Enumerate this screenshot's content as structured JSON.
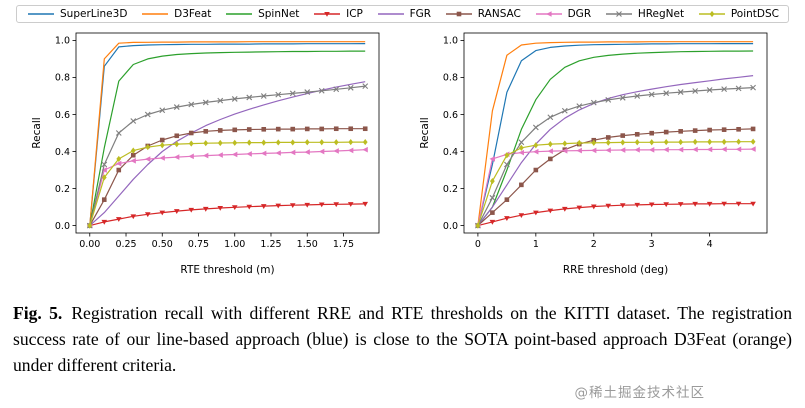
{
  "caption": {
    "fig_label": "Fig. 5.",
    "text": "Registration recall with different RRE and RTE thresholds on the KITTI dataset. The registration success rate of our line-based approach (blue) is close to the SOTA point-based approach D3Feat (orange) under different criteria."
  },
  "watermark": {
    "text": "@稀土掘金技术社区"
  },
  "chart_data": [
    {
      "type": "line",
      "title": "",
      "xlabel": "RTE threshold (m)",
      "ylabel": "Recall",
      "xlim": [
        -0.095,
        1.995
      ],
      "ylim": [
        -0.04,
        1.04
      ],
      "xticks": [
        0.0,
        0.25,
        0.5,
        0.75,
        1.0,
        1.25,
        1.5,
        1.75
      ],
      "xtick_labels": [
        "0.00",
        "0.25",
        "0.50",
        "0.75",
        "1.00",
        "1.25",
        "1.50",
        "1.75"
      ],
      "yticks": [
        0.0,
        0.2,
        0.4,
        0.6,
        0.8,
        1.0
      ],
      "ytick_labels": [
        "0.0",
        "0.2",
        "0.4",
        "0.6",
        "0.8",
        "1.0"
      ],
      "grid": false,
      "legend_position": "top",
      "x": [
        0.0,
        0.1,
        0.2,
        0.3,
        0.4,
        0.5,
        0.6,
        0.7,
        0.8,
        0.9,
        1.0,
        1.1,
        1.2,
        1.3,
        1.4,
        1.5,
        1.6,
        1.7,
        1.8,
        1.9
      ],
      "series": [
        {
          "name": "SuperLine3D",
          "color": "#1f77b4",
          "marker": "none",
          "values": [
            0,
            0.86,
            0.965,
            0.972,
            0.975,
            0.977,
            0.978,
            0.979,
            0.979,
            0.98,
            0.98,
            0.98,
            0.981,
            0.981,
            0.981,
            0.982,
            0.982,
            0.982,
            0.982,
            0.983
          ]
        },
        {
          "name": "D3Feat",
          "color": "#ff7f0e",
          "marker": "none",
          "values": [
            0,
            0.9,
            0.985,
            0.989,
            0.99,
            0.991,
            0.991,
            0.992,
            0.992,
            0.992,
            0.992,
            0.993,
            0.993,
            0.993,
            0.993,
            0.993,
            0.993,
            0.993,
            0.993,
            0.993
          ]
        },
        {
          "name": "SpinNet",
          "color": "#2ca02c",
          "marker": "none",
          "values": [
            0,
            0.42,
            0.78,
            0.87,
            0.9,
            0.915,
            0.924,
            0.929,
            0.932,
            0.934,
            0.936,
            0.937,
            0.938,
            0.939,
            0.94,
            0.94,
            0.941,
            0.941,
            0.942,
            0.942
          ]
        },
        {
          "name": "ICP",
          "color": "#d62728",
          "marker": "v",
          "values": [
            0,
            0.02,
            0.035,
            0.05,
            0.061,
            0.07,
            0.078,
            0.085,
            0.09,
            0.095,
            0.099,
            0.102,
            0.105,
            0.108,
            0.11,
            0.112,
            0.114,
            0.115,
            0.116,
            0.117
          ]
        },
        {
          "name": "FGR",
          "color": "#9467bd",
          "marker": "none",
          "values": [
            0,
            0.07,
            0.16,
            0.25,
            0.33,
            0.4,
            0.455,
            0.5,
            0.54,
            0.573,
            0.602,
            0.628,
            0.652,
            0.674,
            0.694,
            0.713,
            0.731,
            0.748,
            0.763,
            0.777
          ]
        },
        {
          "name": "RANSAC",
          "color": "#8c564b",
          "marker": "s",
          "values": [
            0,
            0.14,
            0.3,
            0.38,
            0.43,
            0.462,
            0.485,
            0.5,
            0.509,
            0.514,
            0.517,
            0.519,
            0.52,
            0.521,
            0.521,
            0.522,
            0.522,
            0.523,
            0.523,
            0.523
          ]
        },
        {
          "name": "DGR",
          "color": "#e377c2",
          "marker": "<",
          "values": [
            0,
            0.3,
            0.335,
            0.35,
            0.359,
            0.365,
            0.37,
            0.374,
            0.378,
            0.381,
            0.384,
            0.387,
            0.39,
            0.392,
            0.395,
            0.397,
            0.4,
            0.403,
            0.406,
            0.41
          ]
        },
        {
          "name": "HRegNet",
          "color": "#7f7f7f",
          "marker": "x",
          "values": [
            0,
            0.33,
            0.5,
            0.565,
            0.6,
            0.623,
            0.64,
            0.654,
            0.665,
            0.675,
            0.684,
            0.692,
            0.7,
            0.707,
            0.714,
            0.721,
            0.728,
            0.736,
            0.744,
            0.753
          ]
        },
        {
          "name": "PointDSC",
          "color": "#bcbd22",
          "marker": "D",
          "values": [
            0,
            0.26,
            0.36,
            0.405,
            0.424,
            0.434,
            0.44,
            0.443,
            0.445,
            0.446,
            0.447,
            0.448,
            0.448,
            0.449,
            0.449,
            0.45,
            0.45,
            0.45,
            0.451,
            0.451
          ]
        }
      ]
    },
    {
      "type": "line",
      "title": "",
      "xlabel": "RRE threshold (deg)",
      "ylabel": "Recall",
      "xlim": [
        -0.24,
        4.99
      ],
      "ylim": [
        -0.04,
        1.04
      ],
      "xticks": [
        0,
        1,
        2,
        3,
        4
      ],
      "xtick_labels": [
        "0",
        "1",
        "2",
        "3",
        "4"
      ],
      "yticks": [
        0.0,
        0.2,
        0.4,
        0.6,
        0.8,
        1.0
      ],
      "ytick_labels": [
        "0.0",
        "0.2",
        "0.4",
        "0.6",
        "0.8",
        "1.0"
      ],
      "grid": false,
      "legend_position": "top",
      "x": [
        0.0,
        0.25,
        0.5,
        0.75,
        1.0,
        1.25,
        1.5,
        1.75,
        2.0,
        2.25,
        2.5,
        2.75,
        3.0,
        3.25,
        3.5,
        3.75,
        4.0,
        4.25,
        4.5,
        4.75
      ],
      "series": [
        {
          "name": "SuperLine3D",
          "color": "#1f77b4",
          "marker": "none",
          "values": [
            0,
            0.33,
            0.72,
            0.89,
            0.945,
            0.962,
            0.97,
            0.974,
            0.977,
            0.978,
            0.979,
            0.98,
            0.981,
            0.981,
            0.982,
            0.982,
            0.982,
            0.983,
            0.983,
            0.983
          ]
        },
        {
          "name": "D3Feat",
          "color": "#ff7f0e",
          "marker": "none",
          "values": [
            0,
            0.62,
            0.92,
            0.975,
            0.985,
            0.988,
            0.99,
            0.991,
            0.991,
            0.992,
            0.992,
            0.992,
            0.993,
            0.993,
            0.993,
            0.993,
            0.993,
            0.993,
            0.993,
            0.993
          ]
        },
        {
          "name": "SpinNet",
          "color": "#2ca02c",
          "marker": "none",
          "values": [
            0,
            0.1,
            0.3,
            0.52,
            0.68,
            0.79,
            0.855,
            0.89,
            0.909,
            0.919,
            0.926,
            0.931,
            0.934,
            0.937,
            0.939,
            0.94,
            0.941,
            0.942,
            0.942,
            0.943
          ]
        },
        {
          "name": "ICP",
          "color": "#d62728",
          "marker": "v",
          "values": [
            0,
            0.02,
            0.04,
            0.056,
            0.07,
            0.081,
            0.09,
            0.097,
            0.103,
            0.107,
            0.11,
            0.112,
            0.114,
            0.115,
            0.116,
            0.117,
            0.117,
            0.118,
            0.118,
            0.118
          ]
        },
        {
          "name": "FGR",
          "color": "#9467bd",
          "marker": "none",
          "values": [
            0,
            0.1,
            0.22,
            0.34,
            0.44,
            0.52,
            0.58,
            0.625,
            0.66,
            0.687,
            0.707,
            0.723,
            0.737,
            0.75,
            0.762,
            0.772,
            0.782,
            0.792,
            0.801,
            0.81
          ]
        },
        {
          "name": "RANSAC",
          "color": "#8c564b",
          "marker": "s",
          "values": [
            0,
            0.07,
            0.14,
            0.22,
            0.3,
            0.36,
            0.41,
            0.44,
            0.461,
            0.476,
            0.486,
            0.493,
            0.499,
            0.505,
            0.509,
            0.513,
            0.516,
            0.518,
            0.52,
            0.522
          ]
        },
        {
          "name": "DGR",
          "color": "#e377c2",
          "marker": "<",
          "values": [
            0,
            0.36,
            0.385,
            0.394,
            0.399,
            0.402,
            0.404,
            0.405,
            0.406,
            0.407,
            0.408,
            0.409,
            0.409,
            0.41,
            0.41,
            0.411,
            0.411,
            0.412,
            0.412,
            0.413
          ]
        },
        {
          "name": "HRegNet",
          "color": "#7f7f7f",
          "marker": "x",
          "values": [
            0,
            0.15,
            0.33,
            0.45,
            0.53,
            0.585,
            0.62,
            0.645,
            0.664,
            0.679,
            0.69,
            0.7,
            0.708,
            0.715,
            0.721,
            0.727,
            0.732,
            0.737,
            0.741,
            0.745
          ]
        },
        {
          "name": "PointDSC",
          "color": "#bcbd22",
          "marker": "D",
          "values": [
            0,
            0.24,
            0.38,
            0.42,
            0.434,
            0.44,
            0.443,
            0.446,
            0.447,
            0.448,
            0.449,
            0.45,
            0.45,
            0.451,
            0.451,
            0.452,
            0.452,
            0.452,
            0.453,
            0.453
          ]
        }
      ]
    }
  ]
}
